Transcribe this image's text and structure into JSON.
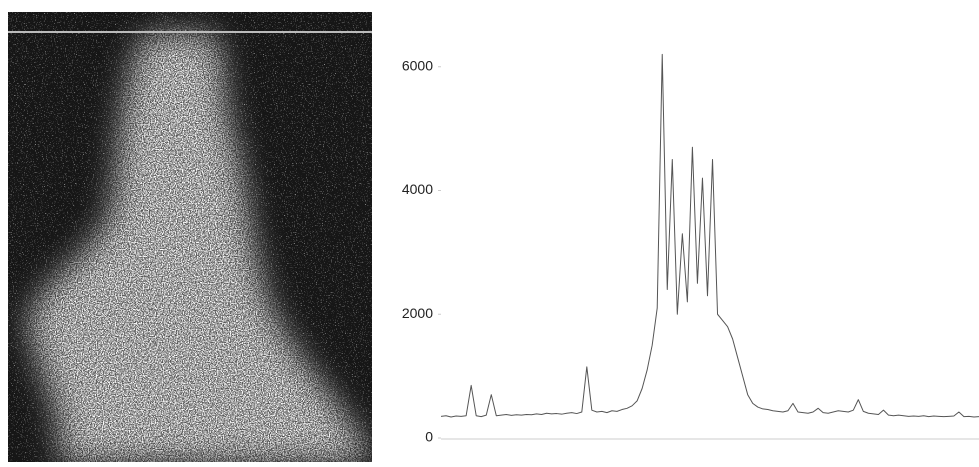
{
  "chart_data": {
    "type": "line",
    "values": [
      350,
      360,
      340,
      355,
      350,
      360,
      850,
      360,
      345,
      370,
      700,
      360,
      370,
      380,
      365,
      375,
      370,
      380,
      375,
      390,
      380,
      400,
      390,
      395,
      385,
      400,
      410,
      395,
      420,
      1150,
      450,
      420,
      430,
      410,
      440,
      430,
      460,
      480,
      520,
      600,
      800,
      1100,
      1500,
      2100,
      6200,
      2400,
      4500,
      2000,
      3300,
      2200,
      4700,
      2500,
      4200,
      2300,
      4500,
      2000,
      1900,
      1800,
      1600,
      1300,
      1000,
      700,
      560,
      500,
      470,
      460,
      440,
      430,
      420,
      440,
      560,
      420,
      410,
      400,
      420,
      480,
      410,
      400,
      420,
      440,
      430,
      420,
      450,
      620,
      430,
      400,
      390,
      380,
      450,
      370,
      360,
      370,
      360,
      350,
      355,
      350,
      360,
      345,
      355,
      350,
      345,
      350,
      355,
      420,
      345,
      350,
      340,
      345
    ],
    "color": "#555555",
    "ylim": [
      0,
      6400
    ],
    "yticks": [
      0,
      2000,
      4000,
      6000
    ]
  }
}
